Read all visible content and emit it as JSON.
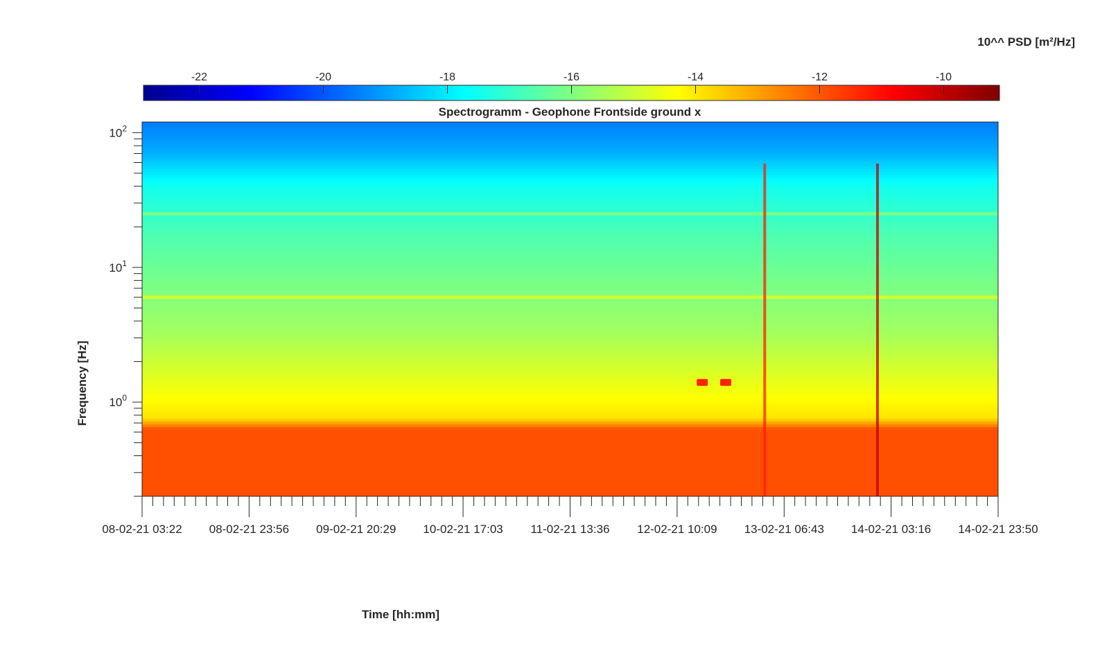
{
  "chart_data": {
    "type": "heatmap",
    "title": "Spectrogramm - Geophone Frontside ground x",
    "xlabel": "Time [hh:mm]",
    "ylabel": "Frequency [Hz]",
    "x_tick_labels": [
      "08-02-21 03:22",
      "08-02-21 23:56",
      "09-02-21 20:29",
      "10-02-21 17:03",
      "11-02-21 13:36",
      "12-02-21 10:09",
      "13-02-21 06:43",
      "14-02-21 03:16",
      "14-02-21 23:50"
    ],
    "y_scale": "log",
    "ylim": [
      0.2,
      120
    ],
    "y_ticks": [
      {
        "base": "10",
        "exp": "0",
        "value": 1
      },
      {
        "base": "10",
        "exp": "1",
        "value": 10
      },
      {
        "base": "10",
        "exp": "2",
        "value": 100
      }
    ],
    "colorbar": {
      "label": "10^^ PSD [m²/Hz]",
      "colormap": "jet",
      "range": [
        -22.9,
        -9.1
      ],
      "ticks": [
        -22,
        -20,
        -18,
        -16,
        -14,
        -12,
        -10
      ],
      "tick_labels": [
        "-22",
        "-20",
        "-18",
        "-16",
        "-14",
        "-12",
        "-10"
      ]
    },
    "features": [
      {
        "kind": "horizontal_line",
        "frequency_hz": 6.0,
        "log10_psd": -14.8
      },
      {
        "kind": "horizontal_line",
        "frequency_hz": 25,
        "log10_psd": -16.0
      },
      {
        "kind": "spike",
        "time": "13-02-21 03:00",
        "log10_psd": -11.2
      },
      {
        "kind": "spike",
        "time": "14-02-21 00:40",
        "log10_psd": -10.0
      },
      {
        "kind": "burst",
        "time": "12-02-21 15:00",
        "frequency_hz": 1.4,
        "log10_psd": -11.3
      },
      {
        "kind": "burst",
        "time": "12-02-21 19:30",
        "frequency_hz": 1.4,
        "log10_psd": -11.3
      }
    ]
  }
}
